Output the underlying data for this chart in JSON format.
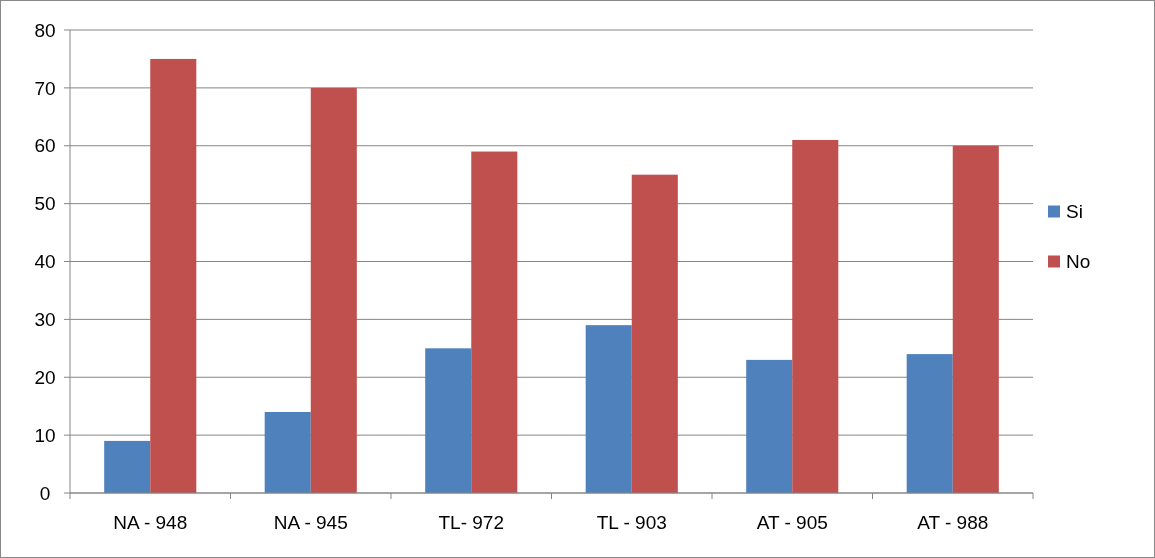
{
  "chart_data": {
    "type": "bar",
    "categories": [
      "NA - 948",
      "NA - 945",
      "TL- 972",
      "TL - 903",
      "AT - 905",
      "AT - 988"
    ],
    "series": [
      {
        "name": "Si",
        "color": "#4f81bd",
        "values": [
          9,
          14,
          25,
          29,
          23,
          24
        ]
      },
      {
        "name": "No",
        "color": "#c0504d",
        "values": [
          75,
          70,
          59,
          55,
          61,
          60
        ]
      }
    ],
    "ylim": [
      0,
      80
    ],
    "yticks": [
      0,
      10,
      20,
      30,
      40,
      50,
      60,
      70,
      80
    ],
    "grid": "y",
    "legend": "right"
  }
}
